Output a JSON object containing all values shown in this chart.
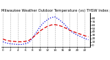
{
  "title": "Milwaukee Weather Outdoor Temperature (vs) THSW Index per Hour (Last 24 Hours)",
  "bg_color": "#ffffff",
  "plot_bg_color": "#ffffff",
  "grid_color": "#888888",
  "hours": [
    0,
    1,
    2,
    3,
    4,
    5,
    6,
    7,
    8,
    9,
    10,
    11,
    12,
    13,
    14,
    15,
    16,
    17,
    18,
    19,
    20,
    21,
    22,
    23
  ],
  "temp": [
    18,
    14,
    12,
    11,
    10,
    10,
    11,
    14,
    22,
    32,
    42,
    50,
    56,
    60,
    61,
    59,
    55,
    50,
    44,
    40,
    36,
    32,
    28,
    25
  ],
  "thsw": [
    10,
    6,
    4,
    3,
    2,
    2,
    4,
    8,
    22,
    38,
    55,
    67,
    76,
    82,
    84,
    77,
    68,
    57,
    44,
    36,
    30,
    25,
    20,
    16
  ],
  "temp_color": "#dd0000",
  "thsw_color": "#0000dd",
  "ylim": [
    -5,
    95
  ],
  "ytick_vals": [
    0,
    10,
    20,
    30,
    40,
    50,
    60,
    70,
    80
  ],
  "ytick_labels": [
    "0",
    "10",
    "20",
    "30",
    "40",
    "50",
    "60",
    "70",
    "80"
  ],
  "title_fontsize": 3.8,
  "tick_fontsize": 3.0,
  "line_width": 0.9
}
